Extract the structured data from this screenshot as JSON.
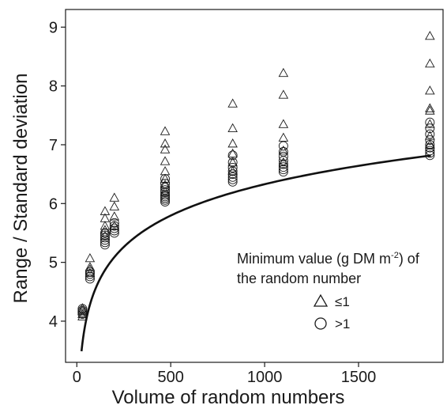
{
  "chart_data": {
    "type": "scatter",
    "title": "",
    "xlabel": "Volume of random numbers",
    "ylabel": "Range / Standard deviation",
    "xlim": [
      -60,
      1950
    ],
    "ylim": [
      3.3,
      9.3
    ],
    "xticks": [
      0,
      500,
      1000,
      1500
    ],
    "yticks": [
      4,
      5,
      6,
      7,
      8,
      9
    ],
    "grid": false,
    "legend": {
      "placement": "bottom-right",
      "title_main": "Minimum value (g DM m",
      "title_sup": "-2",
      "title_end": ") of",
      "title_line2": "the random number",
      "entries": [
        {
          "marker": "triangle",
          "label": "≤1"
        },
        {
          "marker": "circle",
          "label": ">1"
        }
      ]
    },
    "series": [
      {
        "label": "≤1",
        "marker": "triangle",
        "points": [
          [
            30,
            4.08
          ],
          [
            30,
            4.12
          ],
          [
            30,
            4.18
          ],
          [
            30,
            4.22
          ],
          [
            70,
            4.82
          ],
          [
            70,
            4.88
          ],
          [
            70,
            4.92
          ],
          [
            70,
            5.07
          ],
          [
            150,
            5.45
          ],
          [
            150,
            5.55
          ],
          [
            150,
            5.62
          ],
          [
            150,
            5.75
          ],
          [
            150,
            5.87
          ],
          [
            200,
            5.62
          ],
          [
            200,
            5.78
          ],
          [
            200,
            5.95
          ],
          [
            200,
            6.1
          ],
          [
            470,
            6.2
          ],
          [
            470,
            6.32
          ],
          [
            470,
            6.42
          ],
          [
            470,
            6.55
          ],
          [
            470,
            6.72
          ],
          [
            470,
            6.92
          ],
          [
            470,
            7.02
          ],
          [
            470,
            7.23
          ],
          [
            830,
            6.55
          ],
          [
            830,
            6.7
          ],
          [
            830,
            6.85
          ],
          [
            830,
            7.02
          ],
          [
            830,
            7.28
          ],
          [
            830,
            7.7
          ],
          [
            1100,
            6.7
          ],
          [
            1100,
            6.9
          ],
          [
            1100,
            7.12
          ],
          [
            1100,
            7.35
          ],
          [
            1100,
            7.85
          ],
          [
            1100,
            8.22
          ],
          [
            1880,
            7.0
          ],
          [
            1880,
            7.15
          ],
          [
            1880,
            7.35
          ],
          [
            1880,
            7.58
          ],
          [
            1880,
            7.62
          ],
          [
            1880,
            7.92
          ],
          [
            1880,
            8.38
          ],
          [
            1880,
            8.85
          ]
        ]
      },
      {
        "label": ">1",
        "marker": "circle",
        "points": [
          [
            30,
            4.12
          ],
          [
            30,
            4.15
          ],
          [
            30,
            4.18
          ],
          [
            30,
            4.21
          ],
          [
            70,
            4.72
          ],
          [
            70,
            4.76
          ],
          [
            70,
            4.8
          ],
          [
            70,
            4.84
          ],
          [
            150,
            5.3
          ],
          [
            150,
            5.34
          ],
          [
            150,
            5.38
          ],
          [
            150,
            5.42
          ],
          [
            150,
            5.46
          ],
          [
            150,
            5.5
          ],
          [
            200,
            5.5
          ],
          [
            200,
            5.54
          ],
          [
            200,
            5.58
          ],
          [
            200,
            5.62
          ],
          [
            200,
            5.67
          ],
          [
            470,
            6.03
          ],
          [
            470,
            6.06
          ],
          [
            470,
            6.09
          ],
          [
            470,
            6.12
          ],
          [
            470,
            6.15
          ],
          [
            470,
            6.19
          ],
          [
            470,
            6.23
          ],
          [
            470,
            6.28
          ],
          [
            470,
            6.34
          ],
          [
            470,
            6.42
          ],
          [
            830,
            6.37
          ],
          [
            830,
            6.41
          ],
          [
            830,
            6.45
          ],
          [
            830,
            6.5
          ],
          [
            830,
            6.55
          ],
          [
            830,
            6.61
          ],
          [
            830,
            6.7
          ],
          [
            830,
            6.82
          ],
          [
            1100,
            6.54
          ],
          [
            1100,
            6.58
          ],
          [
            1100,
            6.62
          ],
          [
            1100,
            6.67
          ],
          [
            1100,
            6.73
          ],
          [
            1100,
            6.8
          ],
          [
            1100,
            6.88
          ],
          [
            1100,
            6.98
          ],
          [
            1880,
            6.82
          ],
          [
            1880,
            6.86
          ],
          [
            1880,
            6.9
          ],
          [
            1880,
            6.95
          ],
          [
            1880,
            7.0
          ],
          [
            1880,
            7.08
          ],
          [
            1880,
            7.18
          ],
          [
            1880,
            7.28
          ],
          [
            1880,
            7.38
          ]
        ]
      }
    ],
    "fit_curve": {
      "form": "y = a + b*ln(x)",
      "a": 1.01,
      "b": 0.77,
      "x_range": [
        25,
        1885
      ]
    }
  }
}
